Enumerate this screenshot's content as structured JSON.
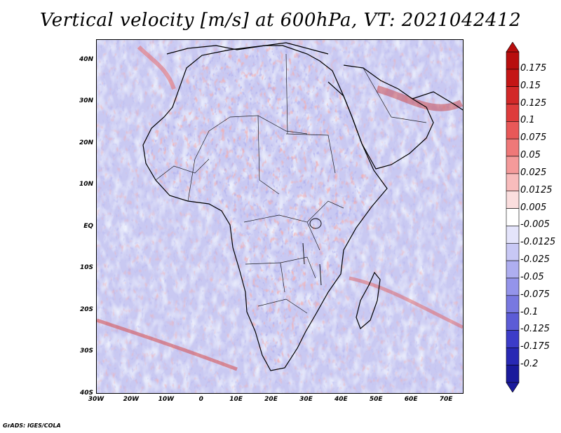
{
  "title": "Vertical velocity [m/s] at 600hPa, VT: 2021042412",
  "credit": "GrADS: IGES/COLA",
  "map": {
    "variable": "Vertical velocity",
    "units": "m/s",
    "level": "600hPa",
    "valid_time": "2021042412",
    "lat_range": [
      -40,
      45
    ],
    "lon_range": [
      -30,
      75
    ]
  },
  "lat_ticks": [
    "40N",
    "30N",
    "20N",
    "10N",
    "EQ",
    "10S",
    "20S",
    "30S",
    "40S"
  ],
  "lat_values": [
    40,
    30,
    20,
    10,
    0,
    -10,
    -20,
    -30,
    -40
  ],
  "lon_ticks": [
    "30W",
    "20W",
    "10W",
    "0",
    "10E",
    "20E",
    "30E",
    "40E",
    "50E",
    "60E",
    "70E"
  ],
  "lon_values": [
    -30,
    -20,
    -10,
    0,
    10,
    20,
    30,
    40,
    50,
    60,
    70
  ],
  "colorbar": {
    "labels": [
      "0.175",
      "0.15",
      "0.125",
      "0.1",
      "0.075",
      "0.05",
      "0.025",
      "0.0125",
      "0.005",
      "-0.005",
      "-0.0125",
      "-0.025",
      "-0.05",
      "-0.075",
      "-0.1",
      "-0.125",
      "-0.175",
      "-0.2"
    ],
    "colors": [
      "#b80e0e",
      "#c41616",
      "#d22828",
      "#de3c3c",
      "#e85858",
      "#ef7878",
      "#f49a9a",
      "#f8bcbc",
      "#fbdede",
      "#ffffff",
      "#e4e4fb",
      "#c8c8f5",
      "#aeaef0",
      "#9494ea",
      "#7878e0",
      "#5c5cd6",
      "#3c3cc8",
      "#2828b4",
      "#1a1a9c"
    ]
  },
  "colors": {
    "background": "#c9c9f2",
    "coast": "#000000"
  }
}
